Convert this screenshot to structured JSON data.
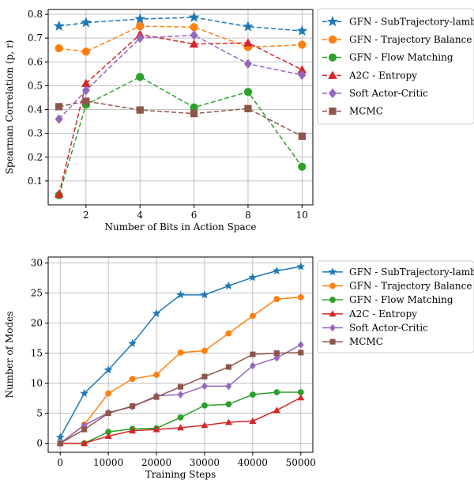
{
  "chart_data": [
    {
      "type": "line",
      "xlabel": "Number of Bits in Action Space",
      "ylabel": "Spearman Correlation (p, r)",
      "xlim": [
        0.6,
        10.4
      ],
      "ylim": [
        0.0,
        0.82
      ],
      "xticks": [
        2,
        4,
        6,
        8,
        10
      ],
      "yticks": [
        0.1,
        0.2,
        0.3,
        0.4,
        0.5,
        0.6,
        0.7,
        0.8
      ],
      "xtick_labels": [
        "2",
        "4",
        "6",
        "8",
        "10"
      ],
      "ytick_labels": [
        "0.1",
        "0.2",
        "0.3",
        "0.4",
        "0.5",
        "0.6",
        "0.7",
        "0.8"
      ],
      "line_style": "dashed",
      "grid": true,
      "legend_position": "outside-right",
      "x": [
        1,
        2,
        4,
        6,
        8,
        10
      ],
      "series": [
        {
          "name": "GFN - SubTrajectory-lambda",
          "color": "#1f77b4",
          "marker": "star",
          "values": [
            0.75,
            0.765,
            0.78,
            0.787,
            0.748,
            0.73
          ]
        },
        {
          "name": "GFN - Trajectory Balance",
          "color": "#ff7f0e",
          "marker": "octagon",
          "values": [
            0.657,
            0.643,
            0.75,
            0.746,
            0.662,
            0.672
          ]
        },
        {
          "name": "GFN - Flow Matching",
          "color": "#2ca02c",
          "marker": "circle",
          "values": [
            0.04,
            0.42,
            0.537,
            0.409,
            0.474,
            0.16
          ]
        },
        {
          "name": "A2C - Entropy",
          "color": "#d62728",
          "marker": "triangle",
          "values": [
            0.045,
            0.51,
            0.715,
            0.675,
            0.68,
            0.567
          ]
        },
        {
          "name": "Soft Actor-Critic",
          "color": "#9467bd",
          "marker": "diamond",
          "values": [
            0.36,
            0.48,
            0.7,
            0.712,
            0.592,
            0.545
          ]
        },
        {
          "name": "MCMC",
          "color": "#8c564b",
          "marker": "square",
          "values": [
            0.412,
            0.435,
            0.398,
            0.383,
            0.404,
            0.288
          ]
        }
      ]
    },
    {
      "type": "line",
      "xlabel": "Training Steps",
      "ylabel": "Number of Modes",
      "xlim": [
        -2500,
        52500
      ],
      "ylim": [
        -1.5,
        31
      ],
      "xticks": [
        0,
        10000,
        20000,
        30000,
        40000,
        50000
      ],
      "yticks": [
        0,
        5,
        10,
        15,
        20,
        25,
        30
      ],
      "xtick_labels": [
        "0",
        "10000",
        "20000",
        "30000",
        "40000",
        "50000"
      ],
      "ytick_labels": [
        "0",
        "5",
        "10",
        "15",
        "20",
        "25",
        "30"
      ],
      "line_style": "solid",
      "grid": true,
      "legend_position": "outside-right",
      "x": [
        0,
        5000,
        10000,
        15000,
        20000,
        25000,
        30000,
        35000,
        40000,
        45000,
        50000
      ],
      "series": [
        {
          "name": "GFN - SubTrajectory-lambda",
          "color": "#1f77b4",
          "marker": "star",
          "values": [
            1.0,
            8.3,
            12.2,
            16.6,
            21.6,
            24.7,
            24.7,
            26.2,
            27.6,
            28.7,
            29.4
          ]
        },
        {
          "name": "GFN - Trajectory Balance",
          "color": "#ff7f0e",
          "marker": "circle",
          "values": [
            0.0,
            3.1,
            8.3,
            10.7,
            11.4,
            15.1,
            15.4,
            18.3,
            21.2,
            24.0,
            24.3
          ]
        },
        {
          "name": "GFN - Flow Matching",
          "color": "#2ca02c",
          "marker": "circle",
          "values": [
            0.0,
            0.0,
            1.9,
            2.4,
            2.5,
            4.3,
            6.3,
            6.5,
            8.1,
            8.5,
            8.5
          ]
        },
        {
          "name": "A2C - Entropy",
          "color": "#d62728",
          "marker": "triangle",
          "values": [
            0.0,
            0.0,
            1.2,
            2.1,
            2.3,
            2.6,
            3.0,
            3.5,
            3.7,
            5.5,
            7.6
          ]
        },
        {
          "name": "Soft Actor-Critic",
          "color": "#9467bd",
          "marker": "diamond",
          "values": [
            0.0,
            3.0,
            5.1,
            6.1,
            7.9,
            8.1,
            9.5,
            9.5,
            12.9,
            14.2,
            16.4
          ]
        },
        {
          "name": "MCMC",
          "color": "#8c564b",
          "marker": "square",
          "values": [
            0.0,
            2.3,
            5.0,
            6.2,
            7.7,
            9.4,
            11.1,
            12.7,
            14.8,
            15.0,
            15.1
          ]
        }
      ]
    }
  ]
}
